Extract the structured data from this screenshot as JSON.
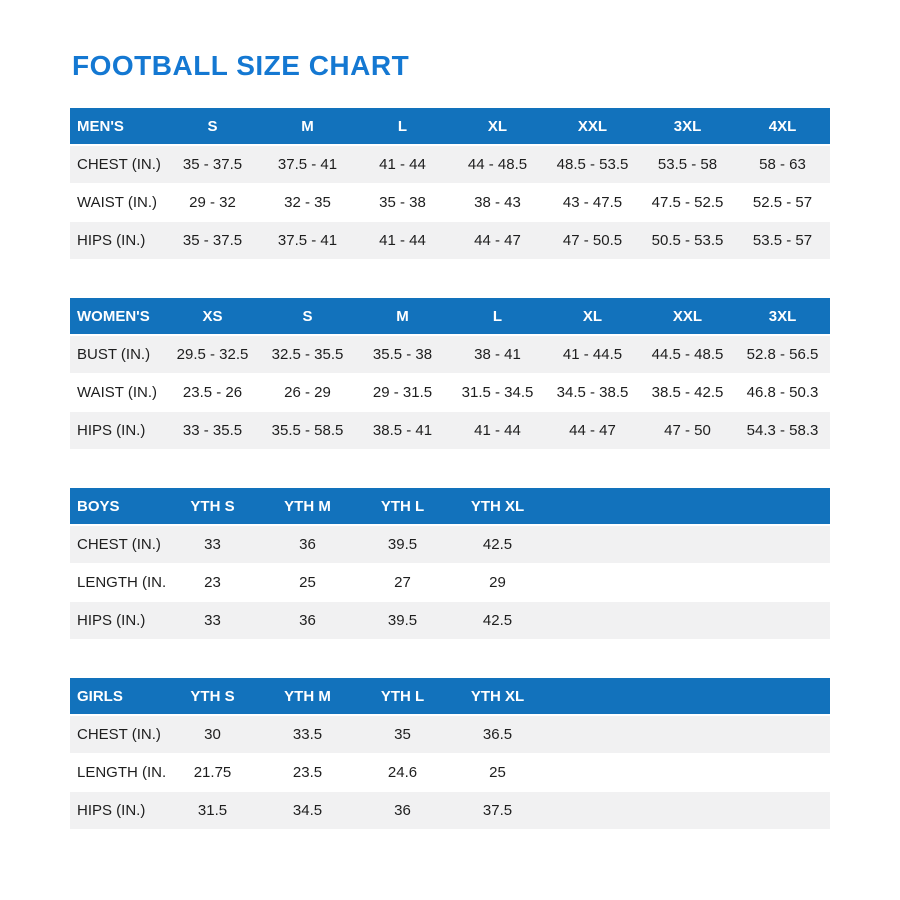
{
  "page": {
    "title": "FOOTBALL SIZE CHART"
  },
  "colors": {
    "title_blue": "#1478d2",
    "header_blue": "#1272bc",
    "row_stripe": "#f1f1f2",
    "text": "#1e1e1e"
  },
  "tables": [
    {
      "name": "mens",
      "header": [
        "MEN'S",
        "S",
        "M",
        "L",
        "XL",
        "XXL",
        "3XL",
        "4XL"
      ],
      "rows": [
        [
          "CHEST (IN.)",
          "35 - 37.5",
          "37.5 - 41",
          "41 - 44",
          "44 - 48.5",
          "48.5 - 53.5",
          "53.5 - 58",
          "58 - 63"
        ],
        [
          "WAIST (IN.)",
          "29 - 32",
          "32 - 35",
          "35 - 38",
          "38 - 43",
          "43 - 47.5",
          "47.5 - 52.5",
          "52.5 - 57"
        ],
        [
          "HIPS (IN.)",
          "35 - 37.5",
          "37.5 - 41",
          "41 - 44",
          "44 - 47",
          "47 - 50.5",
          "50.5 - 53.5",
          "53.5 - 57"
        ]
      ]
    },
    {
      "name": "womens",
      "header": [
        "WOMEN'S",
        "XS",
        "S",
        "M",
        "L",
        "XL",
        "XXL",
        "3XL"
      ],
      "rows": [
        [
          "BUST (IN.)",
          "29.5 - 32.5",
          "32.5 - 35.5",
          "35.5 - 38",
          "38 - 41",
          "41 - 44.5",
          "44.5 - 48.5",
          "52.8 - 56.5"
        ],
        [
          "WAIST (IN.)",
          "23.5 - 26",
          "26 - 29",
          "29 - 31.5",
          "31.5 - 34.5",
          "34.5 - 38.5",
          "38.5 - 42.5",
          "46.8 - 50.3"
        ],
        [
          "HIPS (IN.)",
          "33 - 35.5",
          "35.5 - 58.5",
          "38.5 - 41",
          "41 - 44",
          "44 - 47",
          "47 - 50",
          "54.3 - 58.3"
        ]
      ]
    },
    {
      "name": "boys",
      "header": [
        "BOYS",
        "YTH S",
        "YTH M",
        "YTH L",
        "YTH XL"
      ],
      "rows": [
        [
          "CHEST (IN.)",
          "33",
          "36",
          "39.5",
          "42.5"
        ],
        [
          "LENGTH (IN.)",
          "23",
          "25",
          "27",
          "29"
        ],
        [
          "HIPS (IN.)",
          "33",
          "36",
          "39.5",
          "42.5"
        ]
      ]
    },
    {
      "name": "girls",
      "header": [
        "GIRLS",
        "YTH S",
        "YTH M",
        "YTH L",
        "YTH XL"
      ],
      "rows": [
        [
          "CHEST (IN.)",
          "30",
          "33.5",
          "35",
          "36.5"
        ],
        [
          "LENGTH (IN.)",
          "21.75",
          "23.5",
          "24.6",
          "25"
        ],
        [
          "HIPS (IN.)",
          "31.5",
          "34.5",
          "36",
          "37.5"
        ]
      ]
    }
  ]
}
